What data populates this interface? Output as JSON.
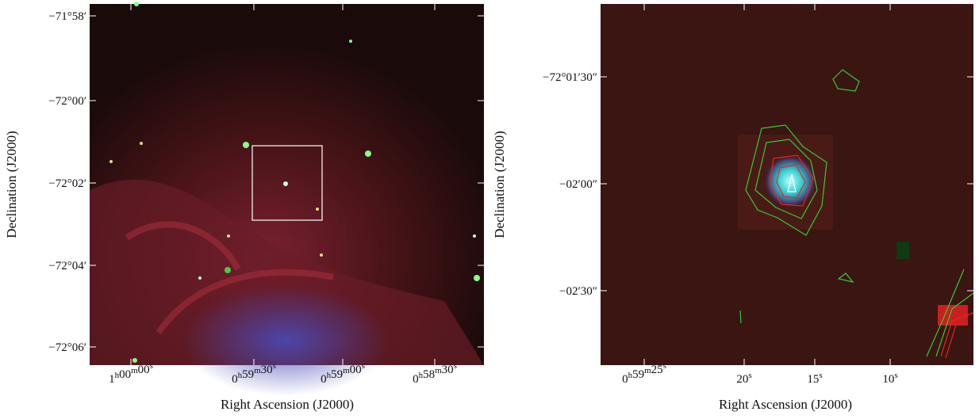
{
  "panels": [
    {
      "y_label": "Declination (J2000)",
      "x_label": "Right Ascension (J2000)",
      "y_ticks": [
        "−71°58′",
        "−72°00′",
        "−72°02′",
        "−72°04′",
        "−72°06′"
      ],
      "x_ticks": [
        "1h00m00s",
        "0h59m30s",
        "0h59m00s",
        "0h58m30s"
      ]
    },
    {
      "y_label": "Declination (J2000)",
      "x_label": "Right Ascension (J2000)",
      "y_ticks": [
        "−72°01′30″",
        "−02′00″",
        "−02′30″"
      ],
      "x_ticks": [
        "0h59m25s",
        "20s",
        "15s",
        "10s"
      ]
    }
  ]
}
